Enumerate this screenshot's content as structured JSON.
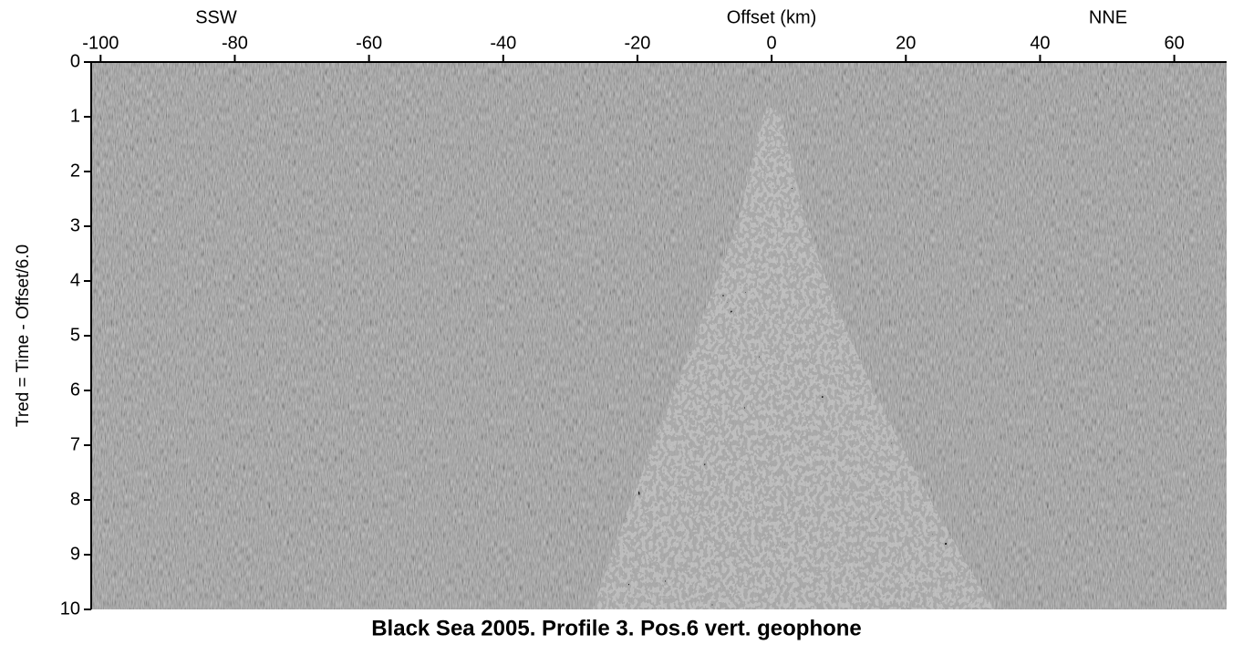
{
  "chart_data": {
    "type": "seismic",
    "title": "Black Sea 2005. Profile 3. Pos.6 vert. geophone",
    "x_label": "Offset (km)",
    "y_label": "Tred = Time - Offset/6.0",
    "annotations": [
      "SSW",
      "NNE"
    ],
    "xlim": [
      -101.4,
      67.8
    ],
    "xticks": [
      -100,
      -80,
      -60,
      -40,
      -20,
      0,
      20,
      40,
      60
    ],
    "ylim": [
      10,
      0
    ],
    "yticks": [
      0,
      1,
      2,
      3,
      4,
      5,
      6,
      7,
      8,
      9,
      10
    ],
    "color": "#888888"
  }
}
